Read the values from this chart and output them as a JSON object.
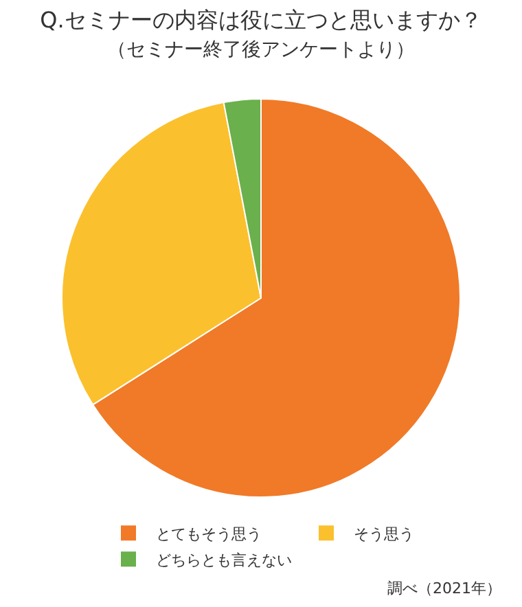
{
  "chart_data": {
    "type": "pie",
    "title": "Q.セミナーの内容は役に立つと思いますか？",
    "subtitle": "（セミナー終了後アンケートより）",
    "categories": [
      "とてもそう思う",
      "そう思う",
      "どちらとも言えない"
    ],
    "values": [
      66,
      31,
      3
    ],
    "colors": [
      "#f07a28",
      "#fbc02d",
      "#6ab04c"
    ],
    "legend": "bottom",
    "annotations": [
      "調べ（2021年）"
    ]
  }
}
